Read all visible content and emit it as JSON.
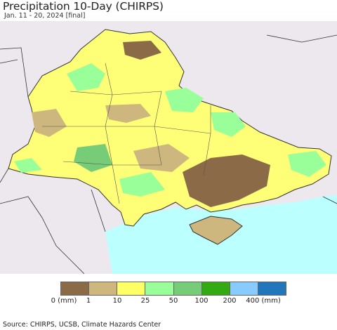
{
  "title": "Precipitation 10-Day (CHIRPS)",
  "subtitle": "Jan. 11 - 20, 2024 [final]",
  "legend": {
    "colors": [
      "#8b6b47",
      "#cdb77e",
      "#ffff66",
      "#99ff99",
      "#77cc77",
      "#33aa11",
      "#88ccff",
      "#2277bb"
    ],
    "labels": [
      "0 (mm)",
      "1",
      "10",
      "25",
      "50",
      "100",
      "200",
      "400 (mm)"
    ]
  },
  "map": {
    "land_color": "#ffff77",
    "outside_color": "#ede8ee",
    "sea_color": "#bbffff",
    "border_color": "#333333"
  },
  "source": "Source: CHIRPS, UCSB, Climate Hazards Center"
}
